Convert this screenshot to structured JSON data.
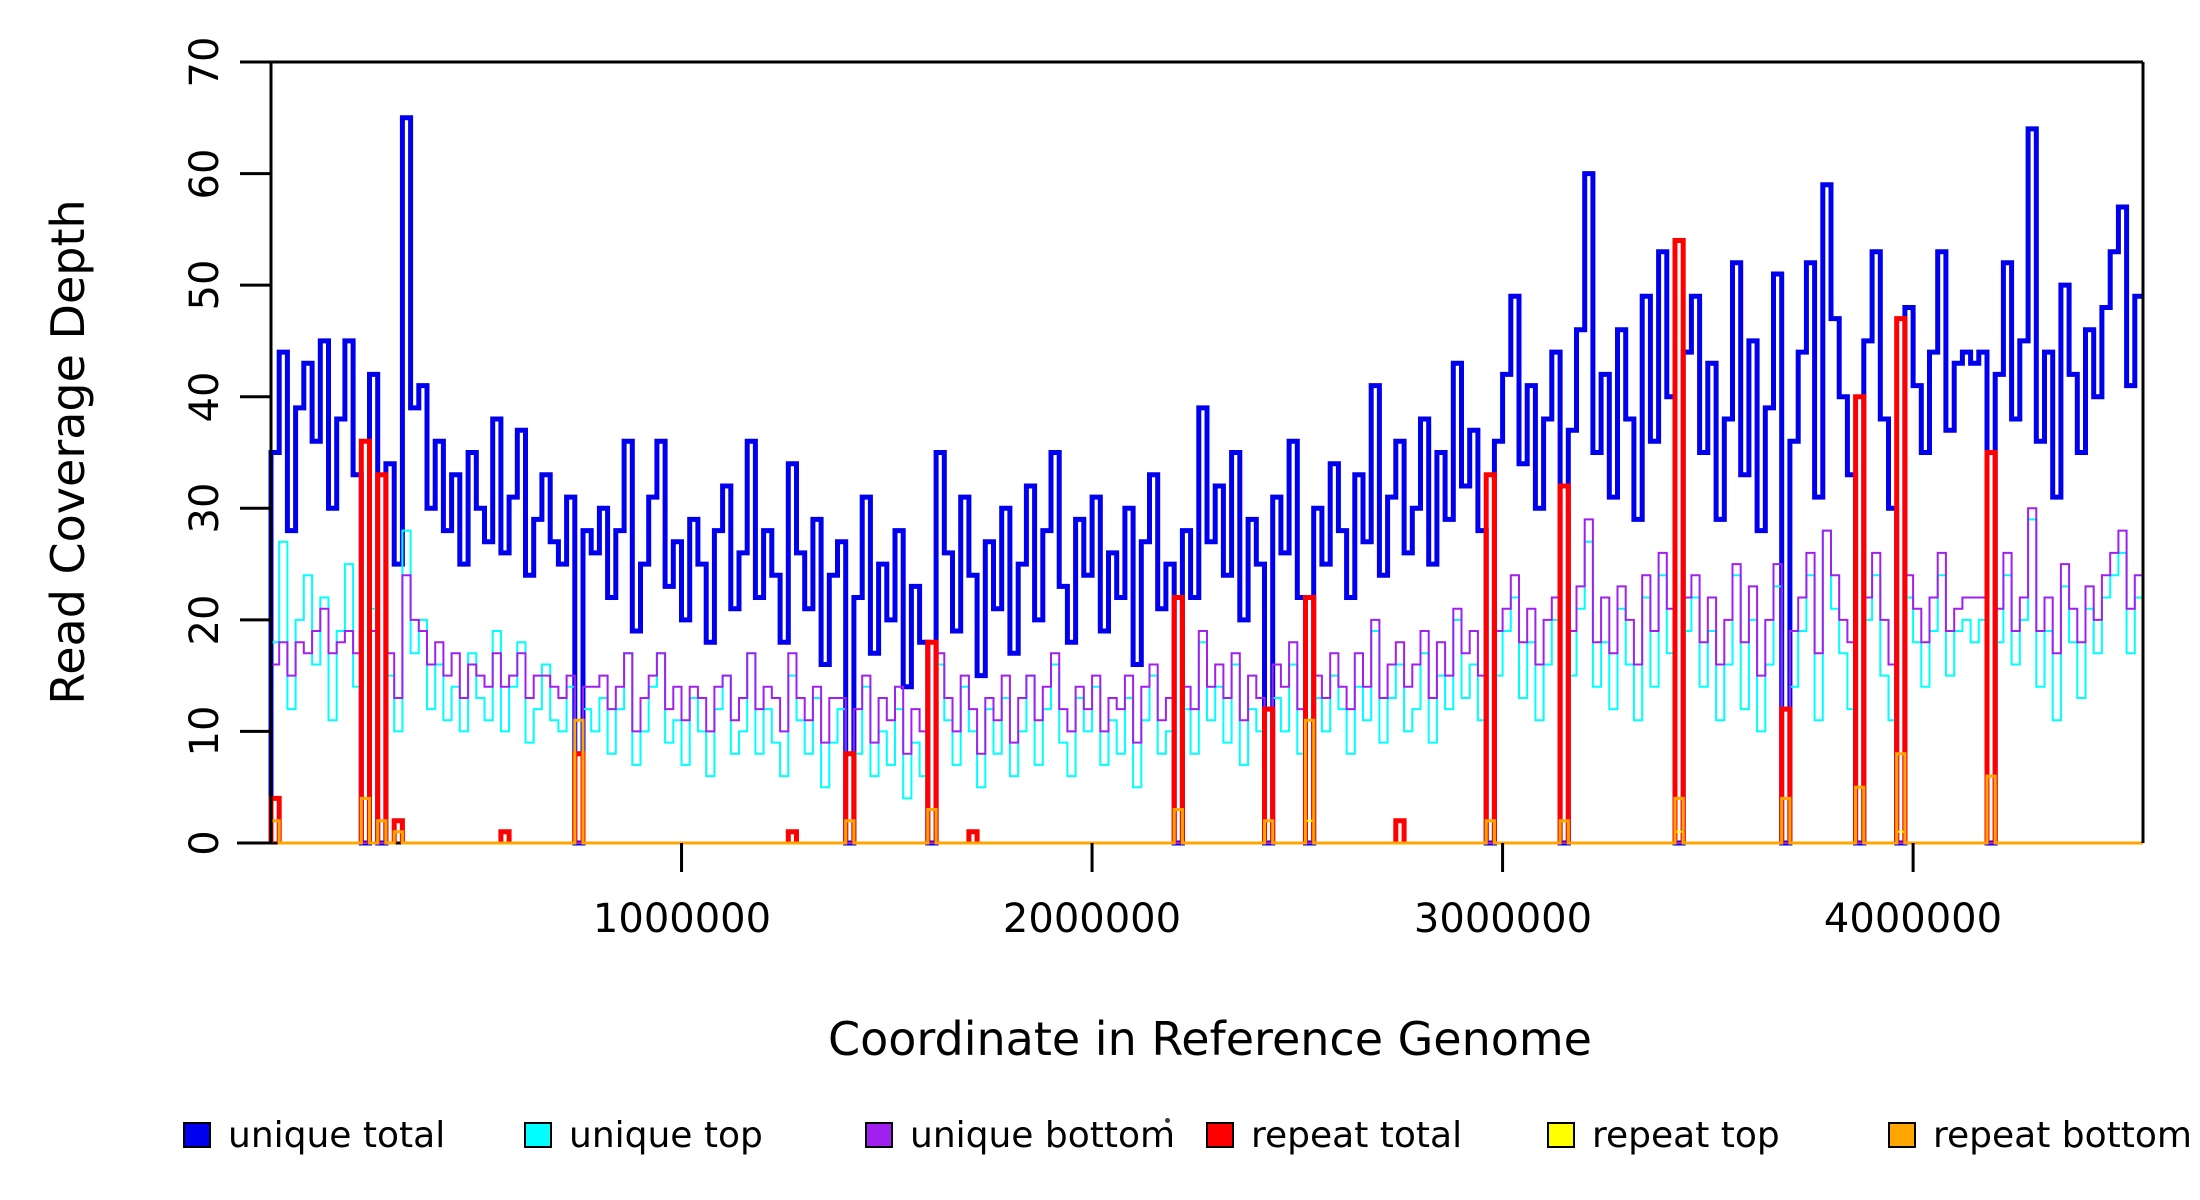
{
  "chart_data": {
    "type": "line",
    "subtype": "step-coverage",
    "title": "",
    "xlabel": "Coordinate in Reference Genome",
    "ylabel": "Read Coverage Depth",
    "xlim": [
      0,
      4560000
    ],
    "ylim": [
      0,
      70
    ],
    "x_ticks": [
      1000000,
      2000000,
      3000000,
      4000000
    ],
    "x_tick_labels": [
      "1000000",
      "2000000",
      "3000000",
      "4000000"
    ],
    "y_ticks": [
      0,
      10,
      20,
      30,
      40,
      50,
      60,
      70
    ],
    "y_tick_labels": [
      "0",
      "10",
      "20",
      "30",
      "40",
      "50",
      "60",
      "70"
    ],
    "grid": false,
    "legend_position": "bottom",
    "bin_size": 20000,
    "series": [
      {
        "name": "unique total",
        "color": "#0000EE",
        "width": 5,
        "values": [
          35,
          44,
          28,
          39,
          43,
          36,
          45,
          30,
          38,
          45,
          33,
          0,
          42,
          0,
          34,
          25,
          65,
          39,
          41,
          30,
          36,
          28,
          33,
          25,
          35,
          30,
          27,
          38,
          26,
          31,
          37,
          24,
          29,
          33,
          27,
          25,
          31,
          0,
          28,
          26,
          30,
          22,
          28,
          36,
          19,
          25,
          31,
          36,
          23,
          27,
          20,
          29,
          25,
          18,
          28,
          32,
          21,
          26,
          36,
          22,
          28,
          24,
          18,
          34,
          26,
          21,
          29,
          16,
          24,
          27,
          0,
          22,
          31,
          17,
          25,
          20,
          28,
          14,
          23,
          18,
          0,
          35,
          26,
          19,
          31,
          24,
          15,
          27,
          21,
          30,
          17,
          25,
          32,
          20,
          28,
          35,
          23,
          18,
          29,
          24,
          31,
          19,
          26,
          22,
          30,
          16,
          27,
          33,
          21,
          25,
          0,
          28,
          22,
          39,
          27,
          32,
          24,
          35,
          20,
          29,
          25,
          0,
          31,
          26,
          36,
          22,
          0,
          30,
          25,
          34,
          28,
          22,
          33,
          27,
          41,
          24,
          31,
          36,
          26,
          30,
          38,
          25,
          35,
          29,
          43,
          32,
          37,
          28,
          0,
          36,
          42,
          49,
          34,
          41,
          30,
          38,
          44,
          0,
          37,
          46,
          60,
          35,
          42,
          31,
          46,
          38,
          29,
          49,
          36,
          53,
          40,
          0,
          44,
          49,
          35,
          43,
          29,
          38,
          52,
          33,
          45,
          28,
          39,
          51,
          0,
          36,
          44,
          52,
          31,
          59,
          47,
          40,
          33,
          0,
          45,
          53,
          38,
          30,
          0,
          48,
          41,
          35,
          44,
          53,
          37,
          43,
          44,
          43,
          44,
          0,
          42,
          52,
          38,
          45,
          64,
          36,
          44,
          31,
          50,
          42,
          35,
          46,
          40,
          48,
          53,
          57,
          41,
          49
        ]
      },
      {
        "name": "unique top",
        "color": "#00FFFF",
        "width": 2,
        "values": [
          18,
          27,
          12,
          20,
          24,
          16,
          22,
          11,
          19,
          25,
          14,
          0,
          21,
          0,
          15,
          10,
          28,
          17,
          20,
          12,
          16,
          11,
          14,
          10,
          17,
          13,
          11,
          19,
          10,
          14,
          18,
          9,
          12,
          16,
          11,
          10,
          14,
          0,
          12,
          10,
          13,
          8,
          12,
          17,
          7,
          10,
          14,
          17,
          9,
          11,
          7,
          13,
          10,
          6,
          12,
          15,
          8,
          10,
          17,
          8,
          12,
          9,
          6,
          15,
          11,
          8,
          13,
          5,
          9,
          12,
          0,
          8,
          14,
          6,
          10,
          7,
          12,
          4,
          9,
          6,
          0,
          16,
          11,
          7,
          14,
          10,
          5,
          12,
          8,
          13,
          6,
          10,
          15,
          7,
          12,
          16,
          9,
          6,
          13,
          10,
          14,
          7,
          11,
          8,
          13,
          5,
          11,
          15,
          8,
          10,
          0,
          12,
          8,
          18,
          11,
          14,
          9,
          16,
          7,
          12,
          10,
          0,
          13,
          10,
          16,
          8,
          0,
          13,
          10,
          15,
          12,
          8,
          14,
          11,
          19,
          9,
          13,
          16,
          10,
          12,
          17,
          9,
          15,
          12,
          20,
          13,
          16,
          11,
          0,
          15,
          19,
          22,
          13,
          18,
          11,
          16,
          20,
          0,
          15,
          21,
          27,
          14,
          18,
          12,
          21,
          16,
          11,
          22,
          14,
          24,
          17,
          0,
          19,
          22,
          14,
          19,
          11,
          16,
          24,
          12,
          20,
          10,
          16,
          23,
          0,
          14,
          19,
          24,
          11,
          28,
          21,
          17,
          12,
          0,
          20,
          24,
          15,
          11,
          0,
          22,
          18,
          14,
          19,
          24,
          15,
          19,
          20,
          18,
          20,
          0,
          18,
          24,
          16,
          20,
          29,
          14,
          19,
          11,
          23,
          18,
          13,
          21,
          17,
          22,
          24,
          26,
          17,
          22
        ]
      },
      {
        "name": "unique bottom",
        "color": "#A020F0",
        "width": 2,
        "values": [
          16,
          18,
          15,
          18,
          17,
          19,
          21,
          17,
          18,
          19,
          17,
          0,
          19,
          0,
          17,
          13,
          24,
          20,
          19,
          16,
          18,
          15,
          17,
          13,
          16,
          15,
          14,
          17,
          14,
          15,
          17,
          13,
          15,
          15,
          14,
          13,
          15,
          0,
          14,
          14,
          15,
          12,
          14,
          17,
          10,
          13,
          15,
          17,
          12,
          14,
          11,
          14,
          13,
          10,
          14,
          15,
          11,
          13,
          17,
          12,
          14,
          13,
          10,
          17,
          13,
          11,
          14,
          9,
          13,
          13,
          0,
          12,
          15,
          9,
          13,
          11,
          14,
          8,
          12,
          10,
          0,
          17,
          13,
          10,
          15,
          12,
          8,
          13,
          11,
          15,
          9,
          13,
          15,
          11,
          14,
          17,
          12,
          10,
          14,
          12,
          15,
          10,
          13,
          12,
          15,
          9,
          14,
          16,
          11,
          13,
          0,
          14,
          12,
          19,
          14,
          16,
          13,
          17,
          11,
          15,
          13,
          0,
          16,
          14,
          18,
          12,
          0,
          15,
          13,
          17,
          14,
          12,
          17,
          14,
          20,
          13,
          16,
          18,
          14,
          16,
          19,
          13,
          18,
          15,
          21,
          17,
          19,
          15,
          0,
          19,
          21,
          24,
          18,
          21,
          16,
          20,
          22,
          0,
          19,
          23,
          29,
          18,
          22,
          17,
          23,
          20,
          16,
          24,
          19,
          26,
          21,
          0,
          22,
          24,
          18,
          22,
          16,
          20,
          25,
          18,
          23,
          15,
          20,
          25,
          0,
          19,
          22,
          26,
          17,
          28,
          24,
          20,
          18,
          0,
          22,
          26,
          20,
          16,
          0,
          24,
          21,
          18,
          22,
          26,
          19,
          21,
          22,
          22,
          22,
          0,
          21,
          26,
          19,
          22,
          30,
          19,
          22,
          17,
          25,
          21,
          18,
          23,
          20,
          24,
          26,
          28,
          21,
          24
        ]
      },
      {
        "name": "repeat total",
        "color": "#FF0000",
        "width": 5,
        "spikes": [
          [
            0,
            4
          ],
          [
            220000,
            36
          ],
          [
            260000,
            33
          ],
          [
            300000,
            2
          ],
          [
            560000,
            1
          ],
          [
            740000,
            8
          ],
          [
            1260000,
            1
          ],
          [
            1400000,
            8
          ],
          [
            1600000,
            18
          ],
          [
            1700000,
            1
          ],
          [
            2200000,
            22
          ],
          [
            2420000,
            12
          ],
          [
            2520000,
            22
          ],
          [
            2740000,
            2
          ],
          [
            2960000,
            33
          ],
          [
            3140000,
            32
          ],
          [
            3420000,
            54
          ],
          [
            3680000,
            12
          ],
          [
            3860000,
            40
          ],
          [
            3960000,
            47
          ],
          [
            4180000,
            35
          ]
        ]
      },
      {
        "name": "repeat top",
        "color": "#FFFF00",
        "width": 2,
        "spikes": [
          [
            2520000,
            2
          ],
          [
            3420000,
            1
          ],
          [
            3960000,
            1
          ]
        ]
      },
      {
        "name": "repeat bottom",
        "color": "#FFA500",
        "width": 3,
        "baseline": 0,
        "spikes": [
          [
            0,
            2
          ],
          [
            220000,
            4
          ],
          [
            260000,
            2
          ],
          [
            300000,
            1
          ],
          [
            740000,
            11
          ],
          [
            1400000,
            2
          ],
          [
            1600000,
            3
          ],
          [
            2200000,
            3
          ],
          [
            2420000,
            2
          ],
          [
            2520000,
            11
          ],
          [
            2960000,
            2
          ],
          [
            3140000,
            2
          ],
          [
            3420000,
            4
          ],
          [
            3680000,
            4
          ],
          [
            3860000,
            5
          ],
          [
            3960000,
            8
          ],
          [
            4180000,
            6
          ]
        ]
      }
    ]
  }
}
